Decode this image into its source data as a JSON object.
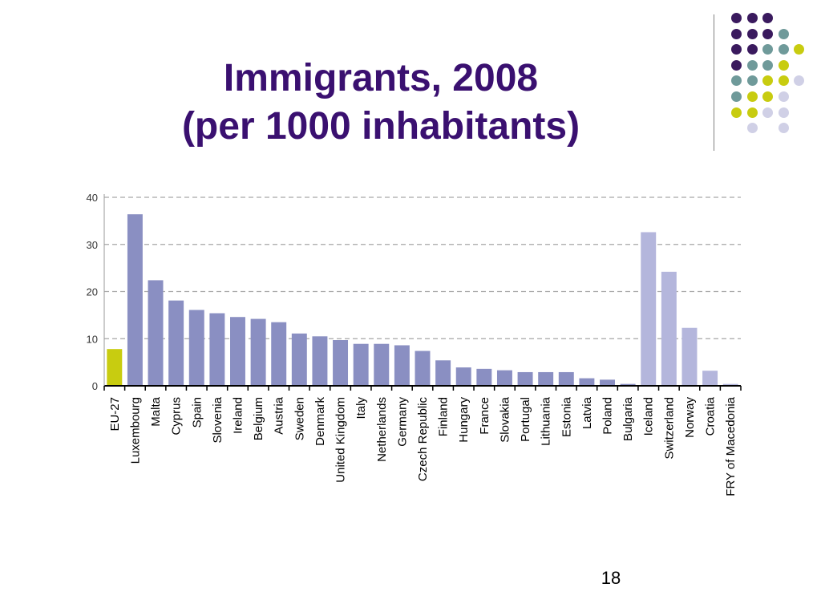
{
  "title_line1": "Immigrants, 2008",
  "title_line2": "(per 1000 inhabitants)",
  "slide_number": "18",
  "colors": {
    "title": "#3a1070",
    "eu_bar": "#c8cc10",
    "eu_country_bar": "#8a8fc2",
    "non_eu_bar": "#b4b6dc",
    "grid": "#a6a6a6",
    "dot_purple": "#3a1a5e",
    "dot_teal": "#6f9a9a",
    "dot_yellow": "#c8cc10",
    "dot_lavender": "#d0d0e6"
  },
  "decoration": {
    "dot_grid": [
      [
        "purple",
        "purple",
        "purple",
        "",
        ""
      ],
      [
        "purple",
        "purple",
        "purple",
        "teal",
        ""
      ],
      [
        "purple",
        "purple",
        "teal",
        "teal",
        "yellow"
      ],
      [
        "purple",
        "teal",
        "teal",
        "yellow",
        ""
      ],
      [
        "teal",
        "teal",
        "yellow",
        "yellow",
        "lavender"
      ],
      [
        "teal",
        "yellow",
        "yellow",
        "lavender",
        ""
      ],
      [
        "yellow",
        "yellow",
        "lavender",
        "lavender",
        ""
      ],
      [
        "",
        "lavender",
        "",
        "lavender",
        ""
      ]
    ]
  },
  "chart_data": {
    "type": "bar",
    "title": "Immigrants, 2008 (per 1000 inhabitants)",
    "xlabel": "",
    "ylabel": "",
    "ylim": [
      0,
      40
    ],
    "yticks": [
      0,
      10,
      20,
      30,
      40
    ],
    "grid": true,
    "categories": [
      "EU-27",
      "Luxembourg",
      "Malta",
      "Cyprus",
      "Spain",
      "Slovenia",
      "Ireland",
      "Belgium",
      "Austria",
      "Sweden",
      "Denmark",
      "United Kingdom",
      "Italy",
      "Netherlands",
      "Germany",
      "Czech Republic",
      "Finland",
      "Hungary",
      "France",
      "Slovakia",
      "Portugal",
      "Lithuania",
      "Estonia",
      "Latvia",
      "Poland",
      "Bulgaria",
      "Iceland",
      "Switzerland",
      "Norway",
      "Croatia",
      "FRY of Macedonia"
    ],
    "values": [
      7.8,
      36.4,
      22.4,
      18.1,
      16.1,
      15.4,
      14.6,
      14.2,
      13.5,
      11.1,
      10.5,
      9.7,
      8.9,
      8.9,
      8.6,
      7.4,
      5.4,
      3.9,
      3.6,
      3.3,
      2.9,
      2.9,
      2.9,
      1.6,
      1.3,
      0.4,
      32.6,
      24.2,
      12.3,
      3.2,
      0.4
    ],
    "groups": [
      "eu",
      "eu_country",
      "eu_country",
      "eu_country",
      "eu_country",
      "eu_country",
      "eu_country",
      "eu_country",
      "eu_country",
      "eu_country",
      "eu_country",
      "eu_country",
      "eu_country",
      "eu_country",
      "eu_country",
      "eu_country",
      "eu_country",
      "eu_country",
      "eu_country",
      "eu_country",
      "eu_country",
      "eu_country",
      "eu_country",
      "eu_country",
      "eu_country",
      "eu_country",
      "non_eu",
      "non_eu",
      "non_eu",
      "non_eu",
      "non_eu"
    ]
  }
}
